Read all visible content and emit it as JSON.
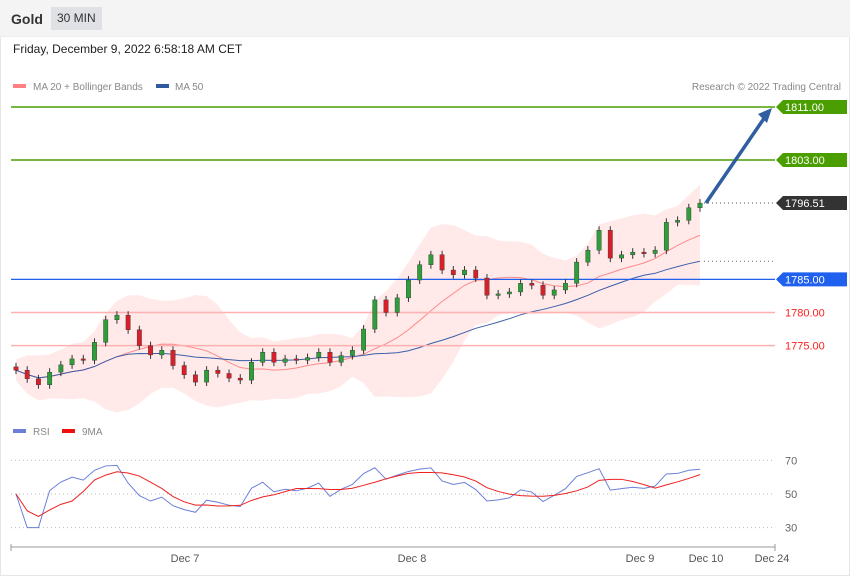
{
  "header": {
    "title": "Gold",
    "timeframe": "30 MIN",
    "datetime": "Friday, December 9, 2022 6:58:18 AM CET"
  },
  "legend": {
    "ma20": "MA 20 + Bollinger Bands",
    "ma50": "MA 50",
    "credit": "Research © 2022 Trading Central",
    "rsi": "RSI",
    "rsi_ma": "9MA"
  },
  "colors": {
    "up": "#2e9e3a",
    "down": "#d9202a",
    "ma20": "#ff8a8a",
    "ma50": "#3a5fa8",
    "band": "#ffe3e3",
    "resistance": "#4a9e00",
    "support": "#2060ee",
    "pivot_red": "#ff2020",
    "current": "#333333",
    "rsi": "#6b7fd8",
    "rsi_ma": "#ee2020"
  },
  "chart_data": {
    "type": "candlestick",
    "closes": [
      1771.3,
      1770.0,
      1769.1,
      1771.0,
      1772.1,
      1773.0,
      1772.8,
      1775.5,
      1778.9,
      1779.6,
      1777.4,
      1775.0,
      1773.6,
      1774.3,
      1772.0,
      1770.6,
      1769.5,
      1771.3,
      1770.8,
      1770.1,
      1769.8,
      1772.5,
      1774.0,
      1772.5,
      1773.0,
      1772.8,
      1773.2,
      1774.0,
      1772.5,
      1773.5,
      1774.3,
      1777.5,
      1781.9,
      1780.0,
      1782.2,
      1784.9,
      1787.2,
      1788.7,
      1786.4,
      1785.7,
      1786.4,
      1785.2,
      1782.6,
      1782.8,
      1783.1,
      1784.4,
      1784.1,
      1782.6,
      1783.4,
      1784.4,
      1787.6,
      1789.4,
      1792.4,
      1788.2,
      1788.7,
      1789.1,
      1788.9,
      1789.4,
      1793.6,
      1793.9,
      1795.8,
      1796.5
    ],
    "levels": [
      {
        "value": 1811.0,
        "label": "1811.00",
        "kind": "resistance"
      },
      {
        "value": 1803.0,
        "label": "1803.00",
        "kind": "resistance"
      },
      {
        "value": 1796.51,
        "label": "1796.51",
        "kind": "current"
      },
      {
        "value": 1785.0,
        "label": "1785.00",
        "kind": "support"
      },
      {
        "value": 1780.0,
        "label": "1780.00",
        "kind": "pivot_red"
      },
      {
        "value": 1775.0,
        "label": "1775.00",
        "kind": "pivot_red"
      }
    ],
    "target_arrow": {
      "from": 1796.51,
      "to": 1811.0
    },
    "rsi_ticks": [
      {
        "v": 70,
        "label": "70"
      },
      {
        "v": 50,
        "label": "50"
      },
      {
        "v": 30,
        "label": "30"
      }
    ],
    "x_labels": [
      "Dec 7",
      "Dec 8",
      "Dec 9",
      "Dec 10",
      "Dec 24"
    ]
  }
}
